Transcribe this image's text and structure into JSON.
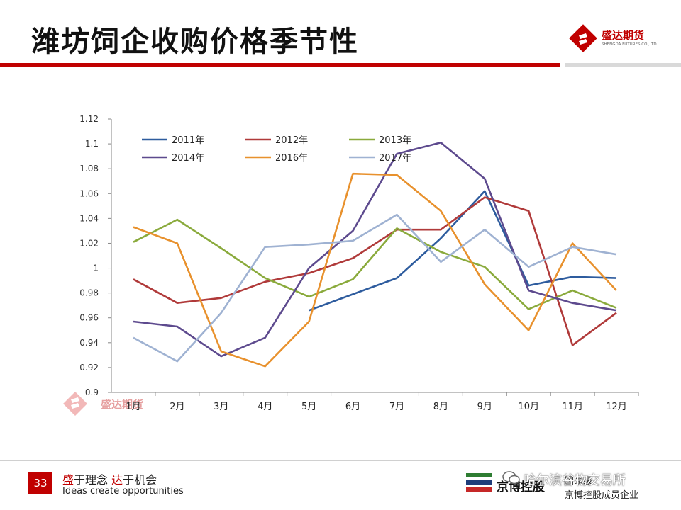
{
  "slide": {
    "title": "潍坊饲企收购价格季节性",
    "page_number": "33",
    "slogan_part1": "盛",
    "slogan_part2": "于理念 ",
    "slogan_part3": "达",
    "slogan_part4": "于机会",
    "slogan_en": "Ideas create opportunities"
  },
  "brand": {
    "logo_text": "盛达期货",
    "logo_sub": "SHENGDA FUTURES CO.,LTD.",
    "partner_name": "京博控股",
    "partner_top": "国家级",
    "partner_sub": "京博控股成员企业",
    "watermark": "哈尔滨谷物交易所"
  },
  "colors": {
    "accent": "#c00000",
    "s2011": "#2e5c9e",
    "s2012": "#b03a3a",
    "s2013": "#8aaa3c",
    "s2014": "#5d4a8e",
    "s2016": "#e8912d",
    "s2017": "#9fb2d2"
  },
  "chart_data": {
    "type": "line",
    "title": "",
    "xlabel": "",
    "ylabel": "",
    "ylim": [
      0.9,
      1.12
    ],
    "yticks": [
      "1.12",
      "1.1",
      "1.08",
      "1.06",
      "1.04",
      "1.02",
      "1",
      "0.98",
      "0.96",
      "0.94",
      "0.92",
      "0.9"
    ],
    "categories": [
      "1月",
      "2月",
      "3月",
      "4月",
      "5月",
      "6月",
      "7月",
      "8月",
      "9月",
      "10月",
      "11月",
      "12月"
    ],
    "series": [
      {
        "name": "2011年",
        "color": "#2e5c9e",
        "values": [
          null,
          null,
          null,
          null,
          0.966,
          0.979,
          0.992,
          1.024,
          1.062,
          0.986,
          0.993,
          0.992
        ]
      },
      {
        "name": "2012年",
        "color": "#b03a3a",
        "values": [
          0.991,
          0.972,
          0.976,
          0.989,
          0.996,
          1.008,
          1.031,
          1.031,
          1.057,
          1.046,
          0.938,
          0.964
        ]
      },
      {
        "name": "2013年",
        "color": "#8aaa3c",
        "values": [
          1.021,
          1.039,
          1.016,
          0.992,
          0.977,
          0.991,
          1.032,
          1.013,
          1.001,
          0.967,
          0.982,
          0.968
        ]
      },
      {
        "name": "2014年",
        "color": "#5d4a8e",
        "values": [
          0.957,
          0.953,
          0.929,
          0.944,
          1.0,
          1.03,
          1.092,
          1.101,
          1.072,
          0.982,
          0.972,
          0.966
        ]
      },
      {
        "name": "2016年",
        "color": "#e8912d",
        "values": [
          1.033,
          1.02,
          0.933,
          0.921,
          0.957,
          1.076,
          1.075,
          1.046,
          0.987,
          0.95,
          1.02,
          0.982
        ]
      },
      {
        "name": "2017年",
        "color": "#9fb2d2",
        "values": [
          0.944,
          0.925,
          0.964,
          1.017,
          1.019,
          1.022,
          1.043,
          1.005,
          1.031,
          1.001,
          1.017,
          1.011
        ]
      }
    ]
  }
}
